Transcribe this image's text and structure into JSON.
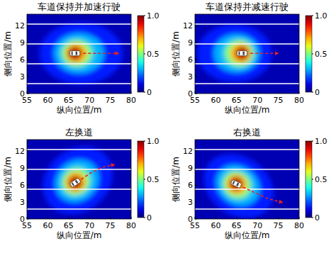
{
  "chart_data": [
    {
      "type": "heatmap",
      "title": "车道保持并加速行驶",
      "x_label": "纵向位置/m",
      "y_label": "侧向位置/m",
      "xlim": [
        55,
        80
      ],
      "ylim": [
        0,
        14
      ],
      "xticks": [
        55,
        60,
        65,
        70,
        75,
        80
      ],
      "yticks": [
        0,
        3,
        6,
        9,
        12
      ],
      "lanes": [
        1.75,
        5.25,
        8.75,
        12.25
      ],
      "background_value": 0.05,
      "field": [
        {
          "value": 0.15,
          "cx": 68,
          "cy": 7.1,
          "rx": 10,
          "ry": 3.4,
          "angle": 0
        },
        {
          "value": 0.3,
          "cx": 67.5,
          "cy": 7.1,
          "rx": 6,
          "ry": 2.2,
          "angle": 0
        },
        {
          "value": 0.5,
          "cx": 67,
          "cy": 7.1,
          "rx": 3.8,
          "ry": 1.5,
          "angle": 0
        },
        {
          "value": 0.7,
          "cx": 66.8,
          "cy": 7.1,
          "rx": 2.6,
          "ry": 1.1,
          "angle": 0
        },
        {
          "value": 0.95,
          "cx": 66.5,
          "cy": 7.1,
          "rx": 1.7,
          "ry": 0.75,
          "angle": 0
        }
      ],
      "arrow": {
        "x": [
          68.5,
          77
        ],
        "y": [
          7.1,
          7.1
        ]
      },
      "colorbar": {
        "range": [
          0,
          1
        ],
        "ticks": [
          0,
          0.5,
          {
            "value": 1,
            "label": "1.0"
          }
        ]
      }
    },
    {
      "type": "heatmap",
      "title": "车道保持并减速行驶",
      "x_label": "纵向位置/m",
      "y_label": "侧向位置/m",
      "xlim": [
        55,
        80
      ],
      "ylim": [
        0,
        14
      ],
      "xticks": [
        55,
        60,
        65,
        70,
        75,
        80
      ],
      "yticks": [
        0,
        3,
        6,
        9,
        12
      ],
      "lanes": [
        1.75,
        5.25,
        8.75,
        12.25
      ],
      "background_value": 0.05,
      "field": [
        {
          "value": 0.15,
          "cx": 64.5,
          "cy": 7.1,
          "rx": 9,
          "ry": 3.2,
          "angle": 0
        },
        {
          "value": 0.3,
          "cx": 65,
          "cy": 7.1,
          "rx": 5.5,
          "ry": 2.1,
          "angle": 0
        },
        {
          "value": 0.5,
          "cx": 65.6,
          "cy": 7.1,
          "rx": 3.6,
          "ry": 1.5,
          "angle": 0
        },
        {
          "value": 0.7,
          "cx": 66,
          "cy": 7.1,
          "rx": 2.5,
          "ry": 1.1,
          "angle": 0
        },
        {
          "value": 0.95,
          "cx": 66.3,
          "cy": 7.1,
          "rx": 1.6,
          "ry": 0.75,
          "angle": 0
        }
      ],
      "arrow": {
        "x": [
          68.3,
          75
        ],
        "y": [
          7.1,
          7.1
        ]
      },
      "colorbar": {
        "range": [
          0,
          1
        ],
        "ticks": [
          0,
          0.5,
          {
            "value": 1,
            "label": "1.0"
          }
        ]
      }
    },
    {
      "type": "heatmap",
      "title": "左换道",
      "x_label": "纵向位置/m",
      "y_label": "侧向位置/m",
      "xlim": [
        55,
        80
      ],
      "ylim": [
        0,
        14
      ],
      "xticks": [
        55,
        60,
        65,
        70,
        75,
        80
      ],
      "yticks": [
        0,
        3,
        6,
        9,
        12
      ],
      "lanes": [
        1.75,
        5.25,
        8.75,
        12.25
      ],
      "background_value": 0.05,
      "field": [
        {
          "value": 0.15,
          "cx": 67.2,
          "cy": 6.8,
          "rx": 9,
          "ry": 3.4,
          "angle": 40
        },
        {
          "value": 0.3,
          "cx": 67,
          "cy": 6.7,
          "rx": 5.5,
          "ry": 2.2,
          "angle": 40
        },
        {
          "value": 0.5,
          "cx": 66.8,
          "cy": 6.6,
          "rx": 3.6,
          "ry": 1.5,
          "angle": 40
        },
        {
          "value": 0.7,
          "cx": 66.7,
          "cy": 6.5,
          "rx": 2.5,
          "ry": 1.1,
          "angle": 40
        },
        {
          "value": 0.95,
          "cx": 66.6,
          "cy": 6.4,
          "rx": 1.6,
          "ry": 0.75,
          "angle": 40
        }
      ],
      "arrow": {
        "x": [
          68,
          70.5,
          73,
          76
        ],
        "y": [
          7.0,
          8.2,
          9.1,
          9.6
        ]
      },
      "colorbar": {
        "range": [
          0,
          1
        ],
        "ticks": [
          0,
          0.5,
          {
            "value": 1,
            "label": "1.0"
          }
        ]
      }
    },
    {
      "type": "heatmap",
      "title": "右换道",
      "x_label": "纵向位置/m",
      "y_label": "侧向位置/m",
      "xlim": [
        55,
        80
      ],
      "ylim": [
        0,
        14
      ],
      "xticks": [
        55,
        60,
        65,
        70,
        75,
        80
      ],
      "yticks": [
        0,
        3,
        6,
        9,
        12
      ],
      "lanes": [
        1.75,
        5.25,
        8.75,
        12.25
      ],
      "background_value": 0.05,
      "field": [
        {
          "value": 0.15,
          "cx": 65.5,
          "cy": 5.8,
          "rx": 9,
          "ry": 3.2,
          "angle": -35
        },
        {
          "value": 0.3,
          "cx": 65.3,
          "cy": 5.9,
          "rx": 5.5,
          "ry": 2.1,
          "angle": -35
        },
        {
          "value": 0.5,
          "cx": 65.1,
          "cy": 6.0,
          "rx": 3.6,
          "ry": 1.5,
          "angle": -35
        },
        {
          "value": 0.7,
          "cx": 65,
          "cy": 6.1,
          "rx": 2.5,
          "ry": 1.1,
          "angle": -35
        },
        {
          "value": 0.95,
          "cx": 64.9,
          "cy": 6.2,
          "rx": 1.6,
          "ry": 0.75,
          "angle": -35
        }
      ],
      "arrow": {
        "x": [
          66.5,
          69.5,
          72.5,
          76
        ],
        "y": [
          5.6,
          4.6,
          3.6,
          2.9
        ]
      },
      "colorbar": {
        "range": [
          0,
          1
        ],
        "ticks": [
          0,
          0.5,
          {
            "value": 1,
            "label": "1.0"
          }
        ]
      }
    }
  ]
}
